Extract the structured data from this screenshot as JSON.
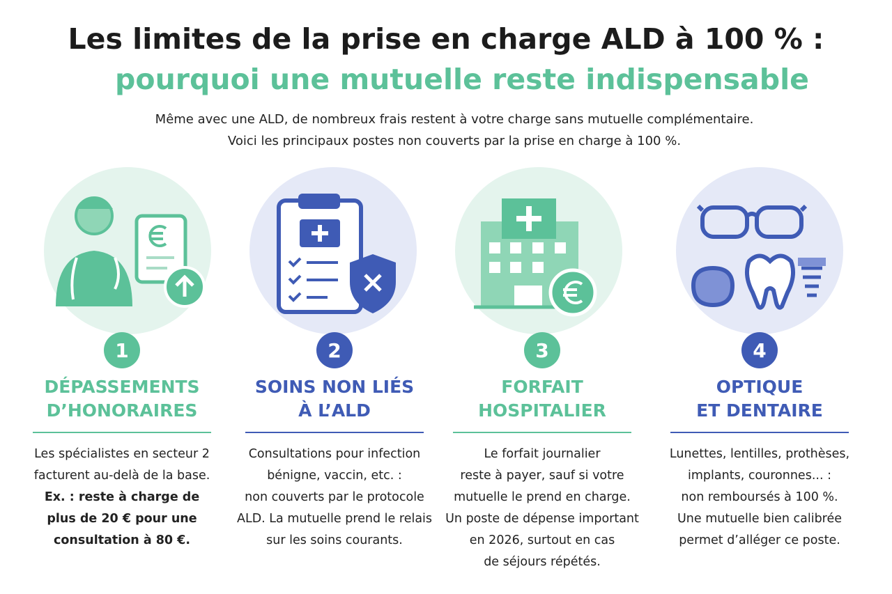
{
  "header": {
    "title": "Les limites de la prise en charge ALD à 100 % :",
    "title_accent": "pourquoi une mutuelle reste indispensable",
    "intro": [
      "Même avec une ALD, de nombreux frais restent à votre charge sans mutuelle complémentaire.",
      "Voici les principaux postes non couverts par la prise en charge à 100 %."
    ]
  },
  "columns": [
    {
      "number": "1",
      "heading": [
        "DÉPASSEMENTS",
        "D’HONORAIRES"
      ],
      "body": [
        "Les spécialistes en secteur 2",
        "facturent au-delà de la base."
      ],
      "emphasis": [
        "Ex. : reste à charge de",
        "plus de 20 € pour une",
        "consultation à 80 €."
      ]
    },
    {
      "number": "2",
      "heading": [
        "SOINS NON LIÉS",
        "À L’ALD"
      ],
      "body": [
        "Consultations pour infection",
        "bénigne, vaccin, etc. :",
        "non couverts par le protocole",
        "ALD. La mutuelle prend le relais",
        "sur les soins courants."
      ]
    },
    {
      "number": "3",
      "heading": [
        "FORFAIT",
        "HOSPITALIER"
      ],
      "body": [
        "Le forfait journalier",
        "reste à payer, sauf si votre",
        "mutuelle le prend en charge.",
        "Un poste de dépense important",
        "en 2026, surtout en cas",
        "de séjours répétés."
      ]
    },
    {
      "number": "4",
      "heading": [
        "OPTIQUE",
        "ET DENTAIRE"
      ],
      "body": [
        "Lunettes, lentilles, prothèses,",
        "implants, couronnes... :",
        "non remboursés à 100 %.",
        "Une mutuelle bien calibrée",
        "permet d’alléger ce poste."
      ]
    }
  ]
}
